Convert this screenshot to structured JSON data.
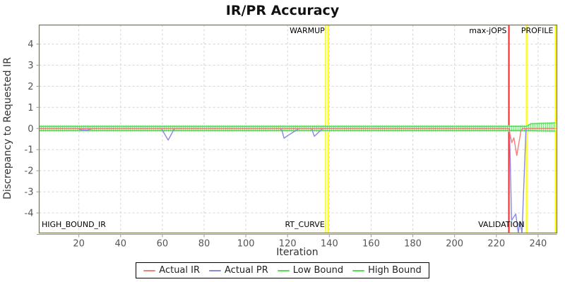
{
  "chart_data": {
    "type": "line",
    "title": "IR/PR Accuracy",
    "xlabel": "Iteration",
    "ylabel": "Discrepancy to Requested IR",
    "xlim": [
      1,
      249
    ],
    "ylim": [
      -4.95,
      4.9
    ],
    "x_ticks": [
      20,
      40,
      60,
      80,
      100,
      120,
      140,
      160,
      180,
      200,
      220,
      240
    ],
    "y_ticks": [
      -4,
      -3,
      -2,
      -1,
      0,
      1,
      2,
      3,
      4
    ],
    "grid": true,
    "legend_position": "bottom",
    "colors": {
      "actual_ir": "#f08080",
      "actual_pr": "#8888e6",
      "bound_green": "#55dd55",
      "band_fill": "#d9ffd9",
      "band_hatch": "#7de87d",
      "marker_yellow": "#ffff00",
      "marker_red": "#ff3333",
      "plot_border": "#7d7b4f",
      "gridline": "#d4d4d4"
    },
    "series": [
      {
        "name": "Actual IR",
        "color": "#f08080",
        "points": [
          [
            1,
            0
          ],
          [
            226,
            0
          ],
          [
            227.4,
            -0.67
          ],
          [
            228.4,
            -0.44
          ],
          [
            229.8,
            -1.28
          ],
          [
            231.8,
            -0.1
          ],
          [
            232.5,
            0
          ],
          [
            248.3,
            0
          ]
        ]
      },
      {
        "name": "Actual PR",
        "color": "#8888e6",
        "points": [
          [
            1,
            0
          ],
          [
            19.5,
            0
          ],
          [
            21,
            -0.06
          ],
          [
            24,
            -0.08
          ],
          [
            26.5,
            0
          ],
          [
            59.5,
            0
          ],
          [
            62.8,
            -0.55
          ],
          [
            65.8,
            0
          ],
          [
            116.5,
            0
          ],
          [
            117.3,
            -0.1
          ],
          [
            118.3,
            -0.46
          ],
          [
            120,
            -0.34
          ],
          [
            125.5,
            0
          ],
          [
            131.5,
            0
          ],
          [
            132.8,
            -0.37
          ],
          [
            136.8,
            0
          ],
          [
            226.3,
            0
          ],
          [
            227.3,
            -4.35
          ],
          [
            229.3,
            -4.05
          ],
          [
            230.5,
            -4.95
          ],
          [
            231.3,
            -4.4
          ],
          [
            232.3,
            -4.95
          ],
          [
            234.2,
            0
          ],
          [
            248.3,
            0
          ]
        ]
      },
      {
        "name": "Low Bound",
        "color": "#55dd55",
        "points": [
          [
            1,
            -0.1
          ],
          [
            234.5,
            -0.1
          ],
          [
            236.5,
            -0.1
          ],
          [
            248.3,
            -0.12
          ]
        ]
      },
      {
        "name": "High Bound",
        "color": "#55dd55",
        "points": [
          [
            1,
            0.1
          ],
          [
            234.5,
            0.1
          ],
          [
            236.5,
            0.22
          ],
          [
            248.3,
            0.26
          ]
        ]
      }
    ],
    "markers": [
      {
        "id": "warmup-end",
        "x": 138.8,
        "color": "#ffff00",
        "style": "double"
      },
      {
        "id": "max-jops",
        "x": 226,
        "color": "#ff3333",
        "style": "single"
      },
      {
        "id": "profile-start",
        "x": 234.5,
        "color": "#ffff00",
        "style": "single"
      },
      {
        "id": "profile-end",
        "x": 248.3,
        "color": "#ffff00",
        "style": "single"
      }
    ],
    "labels": [
      {
        "id": "high-bound-ir",
        "text": "HIGH_BOUND_IR",
        "x": 1.5,
        "align": "start",
        "row": "bottom"
      },
      {
        "id": "warmup",
        "text": "WARMUP",
        "x": 138.8,
        "align": "end",
        "row": "top"
      },
      {
        "id": "rt-curve",
        "text": "RT_CURVE",
        "x": 138.8,
        "align": "end",
        "row": "bottom"
      },
      {
        "id": "max-jops",
        "text": "max-jOPS",
        "x": 226,
        "align": "end",
        "row": "top"
      },
      {
        "id": "validation",
        "text": "VALIDATION",
        "x": 234.5,
        "align": "end",
        "row": "bottom"
      },
      {
        "id": "profile",
        "text": "PROFILE",
        "x": 248.3,
        "align": "end",
        "row": "top"
      }
    ],
    "legend": [
      {
        "label": "Actual IR",
        "color": "#f08080"
      },
      {
        "label": "Actual PR",
        "color": "#8888e6"
      },
      {
        "label": "Low Bound",
        "color": "#55dd55"
      },
      {
        "label": "High Bound",
        "color": "#55dd55"
      }
    ]
  }
}
